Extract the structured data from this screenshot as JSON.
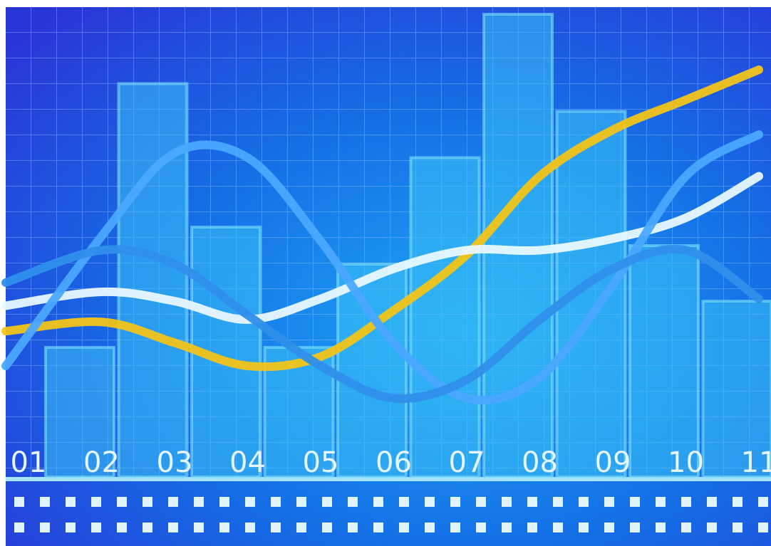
{
  "chart_data": {
    "type": "bar",
    "categories": [
      "01",
      "02",
      "03",
      "04",
      "05",
      "06",
      "07",
      "08",
      "09",
      "10",
      "11"
    ],
    "values": [
      28,
      85,
      54,
      28,
      46,
      69,
      100,
      79,
      50,
      38,
      null
    ],
    "color": "#3cc2f5",
    "ylim": [
      0,
      100
    ],
    "series": [
      {
        "color": "#f2c418",
        "values": [
          31.5,
          33.5,
          29,
          24,
          26,
          36,
          48,
          65,
          75,
          81.5,
          88
        ]
      },
      {
        "color": "#e8f8ff",
        "values": [
          37,
          40,
          38,
          34,
          38.5,
          45,
          49,
          49,
          51.5,
          56,
          65
        ]
      },
      {
        "color": "#4aa8ff",
        "values": [
          24,
          52,
          70,
          69,
          51,
          29,
          17,
          21.5,
          41.5,
          65,
          74
        ]
      },
      {
        "color": "#2f8fea",
        "values": [
          42,
          49,
          46,
          35,
          24,
          17,
          21,
          34,
          45,
          49,
          38.5
        ]
      }
    ]
  }
}
